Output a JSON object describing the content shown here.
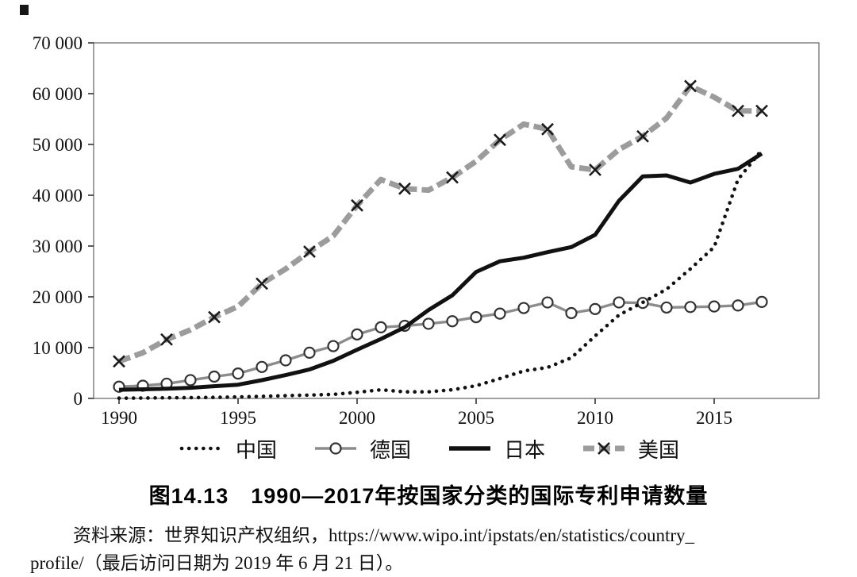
{
  "figure": {
    "title": "图14.13　1990—2017年按国家分类的国际专利申请数量",
    "source_line1": "资料来源：世界知识产权组织，https://www.wipo.int/ipstats/en/statistics/country_",
    "source_line2": "profile/（最后访问日期为 2019 年 6 月 21 日）。"
  },
  "chart_data": {
    "type": "line",
    "title": "图14.13　1990—2017年按国家分类的国际专利申请数量",
    "xlabel": "",
    "ylabel": "",
    "xlim": [
      1990,
      2017
    ],
    "ylim": [
      0,
      70000
    ],
    "grid": false,
    "legend_position": "bottom",
    "x": [
      1990,
      1991,
      1992,
      1993,
      1994,
      1995,
      1996,
      1997,
      1998,
      1999,
      2000,
      2001,
      2002,
      2003,
      2004,
      2005,
      2006,
      2007,
      2008,
      2009,
      2010,
      2011,
      2012,
      2013,
      2014,
      2015,
      2016,
      2017
    ],
    "x_tick_values": [
      1990,
      1995,
      2000,
      2005,
      2010,
      2015
    ],
    "x_tick_labels": [
      "1990",
      "1995",
      "2000",
      "2005",
      "2010",
      "2015"
    ],
    "y_ticks": [
      {
        "value": 0,
        "label": "0"
      },
      {
        "value": 10000,
        "label": "10 000"
      },
      {
        "value": 20000,
        "label": "20 000"
      },
      {
        "value": 30000,
        "label": "30 000"
      },
      {
        "value": 40000,
        "label": "40 000"
      },
      {
        "value": 50000,
        "label": "50 000"
      },
      {
        "value": 60000,
        "label": "60 000"
      },
      {
        "value": 70000,
        "label": "70 000"
      }
    ],
    "series": [
      {
        "name": "中国",
        "style": "dotted",
        "color": "#111111",
        "values": [
          50,
          80,
          120,
          150,
          200,
          300,
          400,
          550,
          650,
          800,
          1200,
          1700,
          1300,
          1300,
          1700,
          2500,
          3900,
          5400,
          6100,
          8000,
          12300,
          16400,
          18900,
          21500,
          25500,
          29800,
          43100,
          48900
        ]
      },
      {
        "name": "德国",
        "style": "line-circle",
        "color": "#8c8c8c",
        "marker_color": "#333333",
        "values": [
          2300,
          2500,
          2900,
          3600,
          4300,
          4900,
          6200,
          7500,
          9000,
          10300,
          12600,
          14000,
          14300,
          14700,
          15200,
          16000,
          16700,
          17800,
          18900,
          16800,
          17600,
          18900,
          18800,
          17900,
          18000,
          18100,
          18300,
          19000
        ]
      },
      {
        "name": "日本",
        "style": "solid",
        "color": "#111111",
        "values": [
          1700,
          1800,
          1900,
          2100,
          2400,
          2700,
          3600,
          4600,
          5700,
          7400,
          9600,
          11700,
          14000,
          17400,
          20300,
          24900,
          27000,
          27700,
          28800,
          29800,
          32200,
          38900,
          43700,
          43900,
          42500,
          44200,
          45200,
          48200
        ]
      },
      {
        "name": "美国",
        "style": "dashed-x",
        "color": "#9c9c9c",
        "marker_color": "#1a1a1a",
        "values": [
          7300,
          9000,
          11600,
          13500,
          16000,
          18100,
          22600,
          25500,
          28900,
          32000,
          38000,
          43100,
          41300,
          41000,
          43500,
          46700,
          50900,
          54000,
          53000,
          45600,
          45000,
          49000,
          51600,
          55200,
          61500,
          59300,
          56600,
          56600
        ]
      }
    ]
  }
}
